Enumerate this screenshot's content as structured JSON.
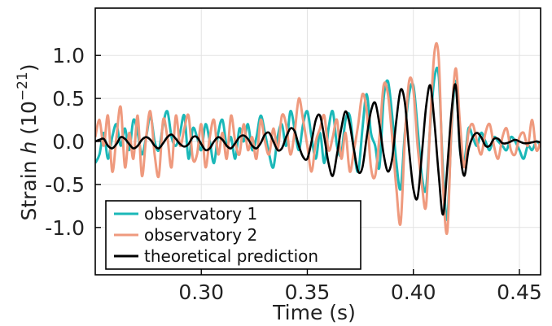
{
  "chart_data": {
    "type": "line",
    "xlabel": "Time (s)",
    "ylabel_prefix": "Strain ",
    "ylabel_var": "h",
    "ylabel_unit_base": "(10",
    "ylabel_unit_exp": "−21",
    "ylabel_unit_close": ")",
    "xlim": [
      0.25,
      0.46
    ],
    "ylim": [
      -1.55,
      1.55
    ],
    "xticks": [
      0.3,
      0.35,
      0.4,
      0.45
    ],
    "xtick_labels": [
      "0.30",
      "0.35",
      "0.40",
      "0.45"
    ],
    "yticks": [
      1.0,
      0.5,
      0.0,
      -0.5,
      -1.0
    ],
    "ytick_labels": [
      "1.0",
      "0.5",
      "0.0",
      "-0.5",
      "-1.0"
    ],
    "grid": true,
    "legend_position": "bottom-left",
    "series": [
      {
        "name": "observatory 1",
        "color": "#1bb8b8",
        "x": [
          0.25,
          0.252,
          0.254,
          0.256,
          0.258,
          0.26,
          0.262,
          0.264,
          0.266,
          0.268,
          0.27,
          0.272,
          0.274,
          0.276,
          0.278,
          0.28,
          0.282,
          0.284,
          0.286,
          0.288,
          0.29,
          0.292,
          0.294,
          0.296,
          0.298,
          0.3,
          0.302,
          0.304,
          0.306,
          0.308,
          0.31,
          0.312,
          0.314,
          0.316,
          0.318,
          0.32,
          0.322,
          0.324,
          0.326,
          0.328,
          0.33,
          0.332,
          0.334,
          0.336,
          0.338,
          0.34,
          0.342,
          0.344,
          0.346,
          0.348,
          0.35,
          0.352,
          0.354,
          0.356,
          0.358,
          0.36,
          0.362,
          0.364,
          0.366,
          0.368,
          0.37,
          0.372,
          0.374,
          0.376,
          0.378,
          0.38,
          0.382,
          0.384,
          0.386,
          0.388,
          0.39,
          0.392,
          0.394,
          0.396,
          0.398,
          0.4,
          0.402,
          0.404,
          0.406,
          0.408,
          0.41,
          0.412,
          0.414,
          0.416,
          0.418,
          0.42,
          0.422,
          0.424,
          0.426,
          0.428,
          0.43,
          0.432,
          0.434,
          0.436,
          0.438,
          0.44,
          0.442,
          0.444,
          0.446,
          0.448,
          0.45,
          0.452,
          0.454,
          0.456,
          0.458,
          0.46
        ],
        "values": [
          -0.25,
          -0.15,
          0.1,
          -0.2,
          0.05,
          0.2,
          -0.05,
          0.15,
          -0.1,
          0.25,
          0.1,
          -0.15,
          0.05,
          0.3,
          0.0,
          -0.1,
          0.2,
          0.35,
          0.05,
          -0.05,
          0.1,
          0.3,
          -0.2,
          0.15,
          0.05,
          -0.1,
          0.2,
          0.0,
          -0.25,
          0.1,
          0.25,
          -0.05,
          0.05,
          -0.2,
          0.15,
          0.0,
          0.2,
          -0.1,
          0.05,
          0.3,
          0.1,
          -0.15,
          -0.3,
          0.05,
          0.2,
          -0.05,
          0.35,
          0.15,
          -0.1,
          0.2,
          0.35,
          0.05,
          -0.2,
          0.1,
          -0.25,
          0.15,
          0.35,
          -0.05,
          -0.15,
          0.25,
          0.3,
          -0.1,
          -0.35,
          0.15,
          0.55,
          0.1,
          -0.05,
          -0.3,
          0.5,
          0.7,
          0.3,
          -0.25,
          -0.55,
          0.1,
          0.55,
          0.65,
          0.15,
          -0.4,
          -0.55,
          0.2,
          0.75,
          0.75,
          -0.35,
          -0.9,
          0.15,
          0.7,
          -0.1,
          -0.25,
          0.15,
          0.05,
          -0.05,
          0.1,
          0.0,
          -0.1,
          0.05,
          0.0,
          -0.05,
          -0.1,
          0.05,
          0.0,
          -0.1,
          -0.2,
          -0.05,
          -0.1,
          0.0,
          -0.05
        ]
      },
      {
        "name": "observatory 2",
        "color": "#ef9a7e",
        "x": [
          0.25,
          0.252,
          0.254,
          0.256,
          0.258,
          0.26,
          0.262,
          0.264,
          0.266,
          0.268,
          0.27,
          0.272,
          0.274,
          0.276,
          0.278,
          0.28,
          0.282,
          0.284,
          0.286,
          0.288,
          0.29,
          0.292,
          0.294,
          0.296,
          0.298,
          0.3,
          0.302,
          0.304,
          0.306,
          0.308,
          0.31,
          0.312,
          0.314,
          0.316,
          0.318,
          0.32,
          0.322,
          0.324,
          0.326,
          0.328,
          0.33,
          0.332,
          0.334,
          0.336,
          0.338,
          0.34,
          0.342,
          0.344,
          0.346,
          0.348,
          0.35,
          0.352,
          0.354,
          0.356,
          0.358,
          0.36,
          0.362,
          0.364,
          0.366,
          0.368,
          0.37,
          0.372,
          0.374,
          0.376,
          0.378,
          0.38,
          0.382,
          0.384,
          0.386,
          0.388,
          0.39,
          0.392,
          0.394,
          0.396,
          0.398,
          0.4,
          0.402,
          0.404,
          0.406,
          0.408,
          0.41,
          0.412,
          0.414,
          0.416,
          0.418,
          0.42,
          0.422,
          0.424,
          0.426,
          0.428,
          0.43,
          0.432,
          0.434,
          0.436,
          0.438,
          0.44,
          0.442,
          0.444,
          0.446,
          0.448,
          0.45,
          0.452,
          0.454,
          0.456,
          0.458,
          0.46
        ],
        "values": [
          0.05,
          0.25,
          -0.05,
          0.3,
          -0.35,
          0.05,
          0.4,
          -0.3,
          0.1,
          -0.2,
          0.3,
          -0.4,
          0.05,
          0.35,
          -0.15,
          -0.4,
          0.25,
          0.05,
          -0.3,
          0.3,
          -0.05,
          0.15,
          0.3,
          -0.2,
          -0.15,
          0.2,
          -0.3,
          0.05,
          0.25,
          -0.15,
          0.1,
          -0.2,
          0.3,
          0.0,
          -0.15,
          0.2,
          -0.1,
          0.05,
          -0.2,
          0.25,
          0.0,
          -0.15,
          0.15,
          -0.1,
          0.3,
          0.2,
          -0.15,
          0.1,
          0.5,
          0.25,
          -0.05,
          -0.35,
          0.0,
          0.15,
          0.3,
          -0.1,
          0.05,
          0.25,
          -0.2,
          0.1,
          -0.35,
          -0.1,
          0.2,
          0.55,
          0.35,
          -0.3,
          -0.4,
          0.05,
          0.65,
          0.55,
          0.05,
          -0.55,
          -0.95,
          0.05,
          0.7,
          0.6,
          -0.05,
          -0.5,
          -0.75,
          0.25,
          1.05,
          0.95,
          -0.5,
          -1.05,
          0.2,
          0.85,
          0.2,
          -0.3,
          0.1,
          0.2,
          0.0,
          -0.15,
          0.1,
          0.2,
          -0.05,
          -0.2,
          0.05,
          0.15,
          -0.1,
          -0.15,
          0.05,
          0.1,
          -0.05,
          0.25,
          -0.1,
          0.0
        ]
      },
      {
        "name": "theoretical prediction",
        "color": "#000000",
        "x": [
          0.25,
          0.252,
          0.254,
          0.256,
          0.258,
          0.26,
          0.262,
          0.264,
          0.266,
          0.268,
          0.27,
          0.272,
          0.274,
          0.276,
          0.278,
          0.28,
          0.282,
          0.284,
          0.286,
          0.288,
          0.29,
          0.292,
          0.294,
          0.296,
          0.298,
          0.3,
          0.302,
          0.304,
          0.306,
          0.308,
          0.31,
          0.312,
          0.314,
          0.316,
          0.318,
          0.32,
          0.322,
          0.324,
          0.326,
          0.328,
          0.33,
          0.332,
          0.334,
          0.336,
          0.338,
          0.34,
          0.342,
          0.344,
          0.346,
          0.348,
          0.35,
          0.352,
          0.354,
          0.356,
          0.358,
          0.36,
          0.362,
          0.364,
          0.366,
          0.368,
          0.37,
          0.372,
          0.374,
          0.376,
          0.378,
          0.38,
          0.382,
          0.384,
          0.386,
          0.388,
          0.39,
          0.392,
          0.394,
          0.396,
          0.398,
          0.4,
          0.402,
          0.404,
          0.406,
          0.408,
          0.41,
          0.412,
          0.414,
          0.416,
          0.418,
          0.42,
          0.422,
          0.424,
          0.426,
          0.428,
          0.43,
          0.432,
          0.434,
          0.436,
          0.438,
          0.44,
          0.442,
          0.444,
          0.446,
          0.448,
          0.45,
          0.452,
          0.454,
          0.456,
          0.458,
          0.46
        ],
        "values": [
          0.0,
          0.02,
          0.03,
          -0.05,
          -0.08,
          -0.03,
          0.05,
          0.03,
          -0.03,
          -0.08,
          -0.05,
          0.02,
          0.05,
          0.02,
          -0.05,
          -0.08,
          -0.02,
          0.05,
          0.08,
          0.03,
          -0.03,
          -0.06,
          -0.03,
          0.05,
          0.05,
          -0.03,
          -0.1,
          -0.08,
          0.0,
          0.05,
          0.02,
          -0.05,
          -0.08,
          -0.02,
          0.05,
          0.07,
          0.03,
          -0.05,
          -0.08,
          -0.02,
          0.08,
          0.1,
          0.0,
          -0.1,
          -0.08,
          0.05,
          0.15,
          0.12,
          -0.05,
          -0.18,
          -0.2,
          0.0,
          0.25,
          0.3,
          0.05,
          -0.25,
          -0.4,
          -0.15,
          0.15,
          0.35,
          0.2,
          -0.1,
          -0.35,
          -0.3,
          0.05,
          0.35,
          0.45,
          0.2,
          -0.15,
          -0.35,
          -0.2,
          0.25,
          0.6,
          0.45,
          -0.1,
          -0.55,
          -0.65,
          -0.15,
          0.4,
          0.65,
          0.2,
          -0.4,
          -0.85,
          -0.3,
          0.35,
          0.65,
          -0.1,
          -0.4,
          -0.1,
          0.05,
          0.1,
          0.05,
          -0.05,
          -0.05,
          0.03,
          0.03,
          -0.02,
          -0.02,
          0.0,
          0.02,
          0.0,
          -0.02,
          -0.02,
          -0.01,
          0.0,
          -0.01
        ]
      }
    ]
  }
}
